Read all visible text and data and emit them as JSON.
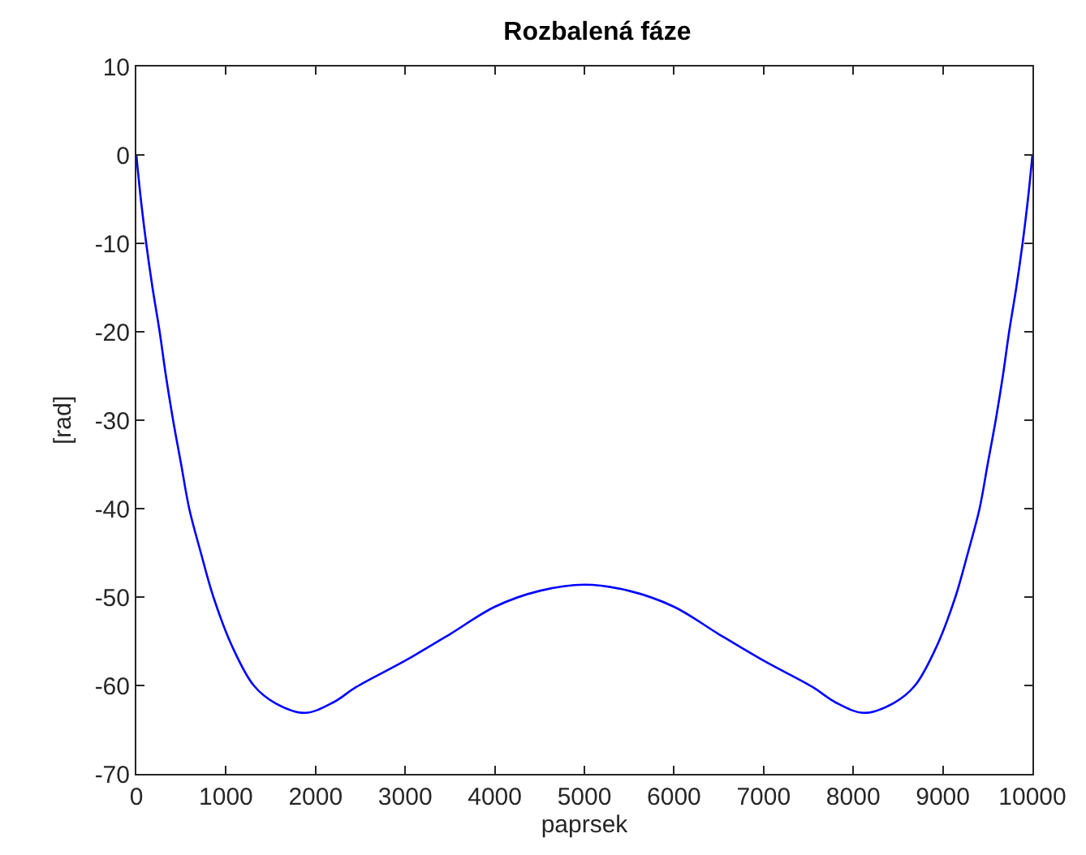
{
  "chart_data": {
    "type": "line",
    "title": "Rozbalená fáze",
    "xlabel": "paprsek",
    "ylabel": "[rad]",
    "x": [
      0,
      50,
      110,
      180,
      260,
      330,
      410,
      500,
      590,
      720,
      860,
      1070,
      1310,
      1550,
      1880,
      2200,
      2450,
      3000,
      3500,
      4000,
      4500,
      5000,
      5500,
      6000,
      6500,
      7000,
      7550,
      7800,
      8120,
      8450,
      8690,
      8930,
      9140,
      9280,
      9410,
      9500,
      9590,
      9670,
      9740,
      9820,
      9890,
      9950,
      10000
    ],
    "series": [
      {
        "color": "#0000ff",
        "values": [
          0,
          -5,
          -10,
          -15,
          -20,
          -25,
          -30,
          -35,
          -40,
          -45,
          -50,
          -55.6,
          -60,
          -62,
          -63.1,
          -61.9,
          -60.2,
          -57.2,
          -54.2,
          -51.1,
          -49.3,
          -48.6,
          -49.3,
          -51.1,
          -54.2,
          -57.2,
          -60.2,
          -61.9,
          -63.1,
          -62,
          -60,
          -55.6,
          -50,
          -45,
          -40,
          -35,
          -30,
          -25,
          -20,
          -15,
          -10,
          -5,
          0
        ]
      }
    ],
    "xlim": [
      0,
      10000
    ],
    "xticks": [
      0,
      1000,
      2000,
      3000,
      4000,
      5000,
      6000,
      7000,
      8000,
      9000,
      10000
    ],
    "ylim": [
      -70,
      10
    ],
    "yticks": [
      -70,
      -60,
      -50,
      -40,
      -30,
      -20,
      -10,
      0,
      10
    ],
    "marker": "none",
    "line_style": "solid"
  }
}
